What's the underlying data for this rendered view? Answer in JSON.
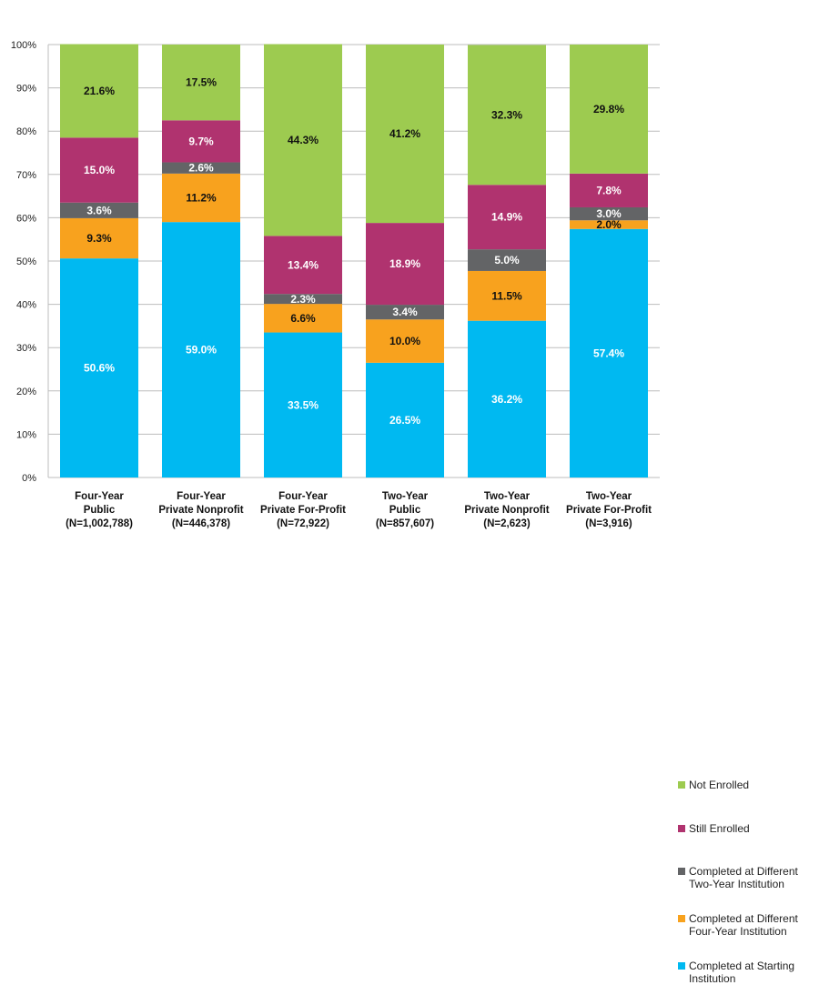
{
  "chart_data": {
    "type": "bar",
    "stacked": true,
    "categories": [
      "Four-Year\nPublic\n(N=1,002,788)",
      "Four-Year\nPrivate Nonprofit\n(N=446,378)",
      "Four-Year\nPrivate For-Profit\n(N=72,922)",
      "Two-Year\nPublic\n(N=857,607)",
      "Two-Year\nPrivate Nonprofit\n(N=2,623)",
      "Two-Year\nPrivate For-Profit\n(N=3,916)"
    ],
    "series": [
      {
        "name": "Completed at Starting Institution",
        "color": "#00b9f1",
        "label_color": "#ffffff",
        "values": [
          50.6,
          59.0,
          33.5,
          26.5,
          36.2,
          57.4
        ]
      },
      {
        "name": "Completed at Different Four-Year Institution",
        "color": "#f8a21e",
        "label_color": "#111111",
        "values": [
          9.3,
          11.2,
          6.6,
          10.0,
          11.5,
          2.0
        ]
      },
      {
        "name": "Completed at Different Two-Year Institution",
        "color": "#636466",
        "label_color": "#ffffff",
        "values": [
          3.6,
          2.6,
          2.3,
          3.4,
          5.0,
          3.0
        ]
      },
      {
        "name": "Still Enrolled",
        "color": "#b0336f",
        "label_color": "#ffffff",
        "values": [
          15.0,
          9.7,
          13.4,
          18.9,
          14.9,
          7.8
        ]
      },
      {
        "name": "Not Enrolled",
        "color": "#9dcb50",
        "label_color": "#111111",
        "values": [
          21.6,
          17.5,
          44.3,
          41.2,
          32.3,
          29.8
        ]
      }
    ],
    "legend_order": [
      "Not Enrolled",
      "Still Enrolled",
      "Completed at Different Two-Year Institution",
      "Completed at Different Four-Year Institution",
      "Completed at Starting Institution"
    ],
    "legend_labels": {
      "Not Enrolled": "Not Enrolled",
      "Still Enrolled": "Still Enrolled",
      "Completed at Different Two-Year Institution": "Completed at Different\nTwo-Year Institution",
      "Completed at Different Four-Year Institution": "Completed at Different\nFour-Year Institution",
      "Completed at Starting Institution": "Completed at Starting\nInstitution"
    },
    "yticks": [
      "0%",
      "10%",
      "20%",
      "30%",
      "40%",
      "50%",
      "60%",
      "70%",
      "80%",
      "90%",
      "100%"
    ],
    "ylim": [
      0,
      100
    ],
    "grid": true,
    "legend_position": "right",
    "title": "",
    "xlabel": "",
    "ylabel": ""
  }
}
